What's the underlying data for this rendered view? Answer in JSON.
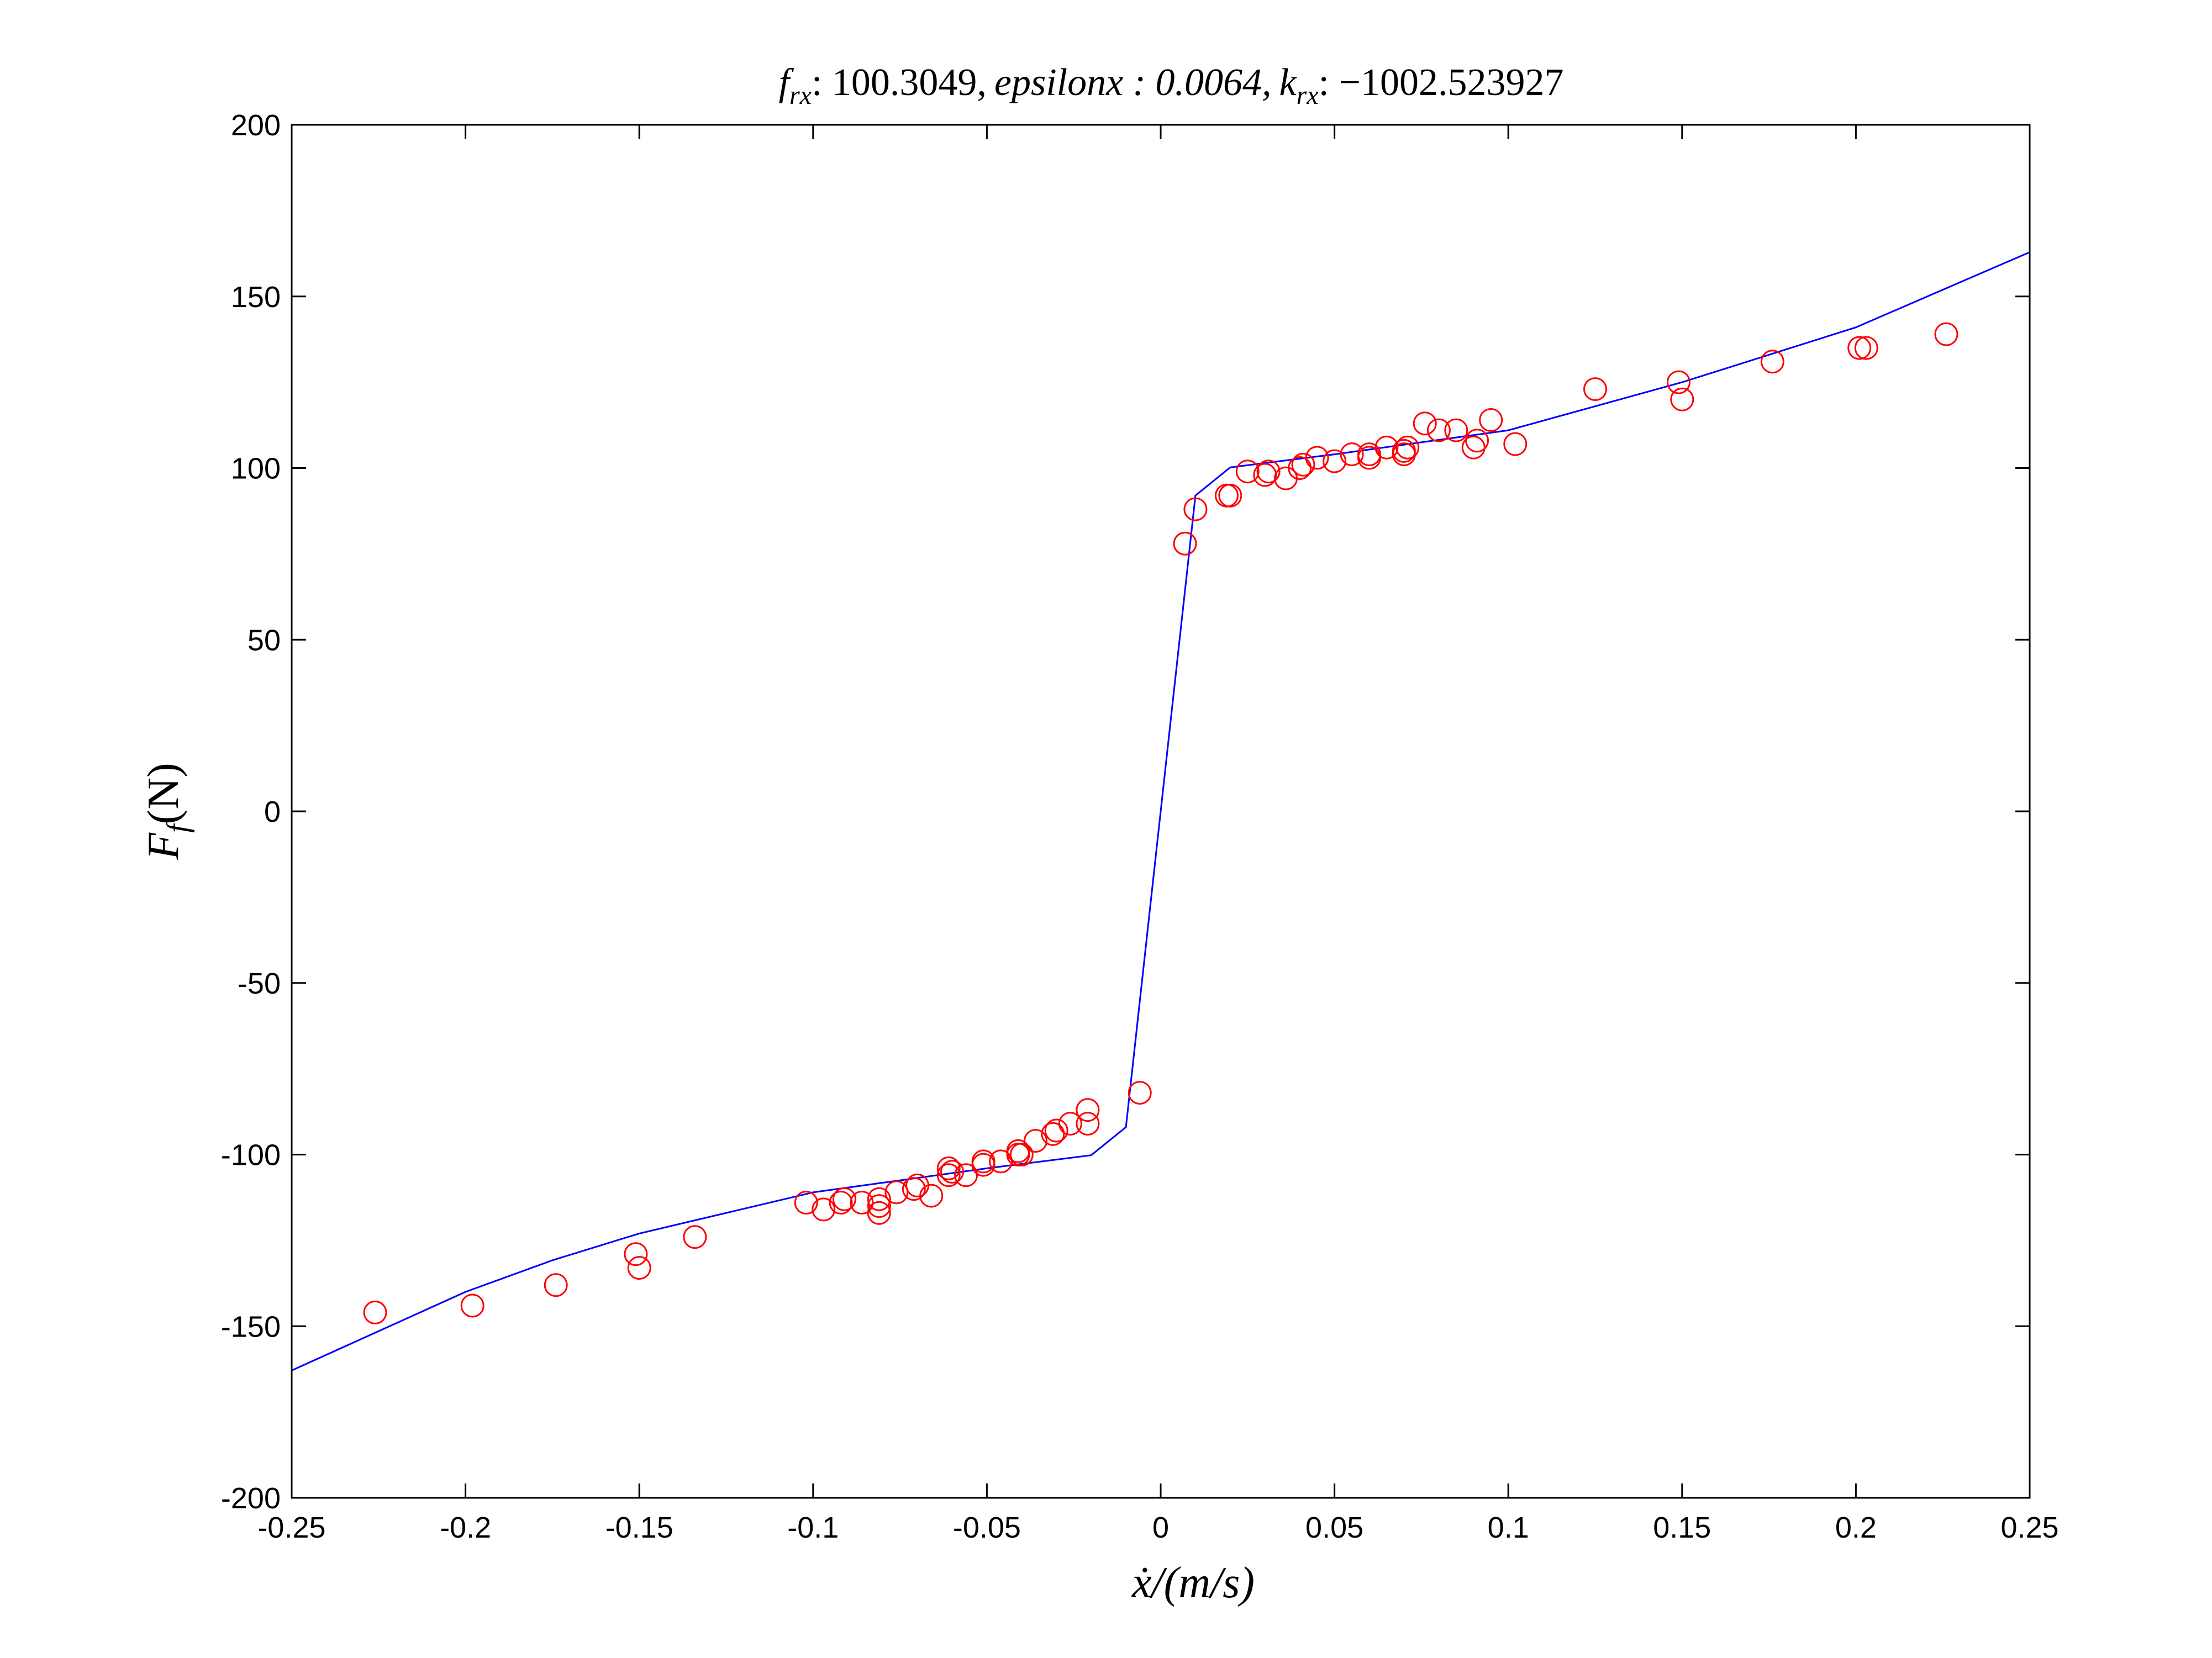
{
  "chart_data": {
    "type": "scatter",
    "title": "f_rx: 100.3049, epsilonx : 0.0064, k_rx: −1002.523927",
    "title_parts": {
      "f_symbol": "f",
      "f_sub": "rx",
      "f_value": ": 100.3049,",
      "eps_text": "epsilonx : 0.0064,",
      "k_symbol": "k",
      "k_sub": "rx",
      "k_value": ": −1002.523927"
    },
    "xlabel": "ẋ/(m/s)",
    "ylabel": "F_f(N)",
    "ylabel_parts": {
      "main": "F",
      "sub": "f",
      "rest": "(N)"
    },
    "xlim": [
      -0.25,
      0.25
    ],
    "ylim": [
      -200,
      200
    ],
    "x_ticks": [
      -0.25,
      -0.2,
      -0.15,
      -0.1,
      -0.05,
      0,
      0.05,
      0.1,
      0.15,
      0.2,
      0.25
    ],
    "x_tick_labels": [
      "-0.25",
      "-0.2",
      "-0.15",
      "-0.1",
      "-0.05",
      "0",
      "0.05",
      "0.1",
      "0.15",
      "0.2",
      "0.25"
    ],
    "y_ticks": [
      -200,
      -150,
      -100,
      -50,
      0,
      50,
      100,
      150,
      200
    ],
    "y_tick_labels": [
      "-200",
      "-150",
      "-100",
      "-50",
      "0",
      "50",
      "100",
      "150",
      "200"
    ],
    "grid": false,
    "series": [
      {
        "kind": "line",
        "color": "#0000ff",
        "x": [
          -0.25,
          -0.2,
          -0.175,
          -0.15,
          -0.1,
          -0.05,
          -0.02,
          -0.01,
          0.01,
          0.02,
          0.05,
          0.1,
          0.15,
          0.2,
          0.25
        ],
        "y": [
          -162.9,
          -140,
          -130.8,
          -123,
          -111,
          -104,
          -100.2,
          -92,
          92,
          100.2,
          104,
          111,
          125,
          141,
          162.9
        ]
      },
      {
        "kind": "scatter",
        "marker": "circle",
        "color": "#ff0000",
        "points": [
          [
            -0.226,
            -146
          ],
          [
            -0.198,
            -144
          ],
          [
            -0.174,
            -138
          ],
          [
            -0.151,
            -129
          ],
          [
            -0.15,
            -133
          ],
          [
            -0.134,
            -124
          ],
          [
            -0.102,
            -114
          ],
          [
            -0.097,
            -116
          ],
          [
            -0.092,
            -114
          ],
          [
            -0.091,
            -113
          ],
          [
            -0.086,
            -114
          ],
          [
            -0.081,
            -113
          ],
          [
            -0.081,
            -115
          ],
          [
            -0.081,
            -117
          ],
          [
            -0.076,
            -111
          ],
          [
            -0.071,
            -110
          ],
          [
            -0.07,
            -109
          ],
          [
            -0.066,
            -112
          ],
          [
            -0.061,
            -104
          ],
          [
            -0.061,
            -106
          ],
          [
            -0.06,
            -105
          ],
          [
            -0.056,
            -106
          ],
          [
            -0.051,
            -103
          ],
          [
            -0.051,
            -102
          ],
          [
            -0.046,
            -102
          ],
          [
            -0.041,
            -100
          ],
          [
            -0.041,
            -99
          ],
          [
            -0.04,
            -100
          ],
          [
            -0.036,
            -96
          ],
          [
            -0.031,
            -94
          ],
          [
            -0.03,
            -93
          ],
          [
            -0.026,
            -91
          ],
          [
            -0.021,
            -91
          ],
          [
            -0.021,
            -87
          ],
          [
            -0.006,
            -82
          ],
          [
            0.007,
            78
          ],
          [
            0.01,
            88
          ],
          [
            0.019,
            92
          ],
          [
            0.02,
            92
          ],
          [
            0.025,
            99
          ],
          [
            0.03,
            98
          ],
          [
            0.031,
            99
          ],
          [
            0.036,
            97
          ],
          [
            0.04,
            100
          ],
          [
            0.041,
            101
          ],
          [
            0.045,
            103
          ],
          [
            0.05,
            102
          ],
          [
            0.055,
            104
          ],
          [
            0.06,
            103
          ],
          [
            0.06,
            104
          ],
          [
            0.065,
            106
          ],
          [
            0.07,
            104
          ],
          [
            0.07,
            105
          ],
          [
            0.071,
            106
          ],
          [
            0.076,
            113
          ],
          [
            0.08,
            111
          ],
          [
            0.085,
            111
          ],
          [
            0.09,
            106
          ],
          [
            0.091,
            108
          ],
          [
            0.095,
            114
          ],
          [
            0.102,
            107
          ],
          [
            0.125,
            123
          ],
          [
            0.149,
            125
          ],
          [
            0.15,
            120
          ],
          [
            0.176,
            131
          ],
          [
            0.201,
            135
          ],
          [
            0.203,
            135
          ],
          [
            0.226,
            139
          ]
        ]
      }
    ]
  }
}
